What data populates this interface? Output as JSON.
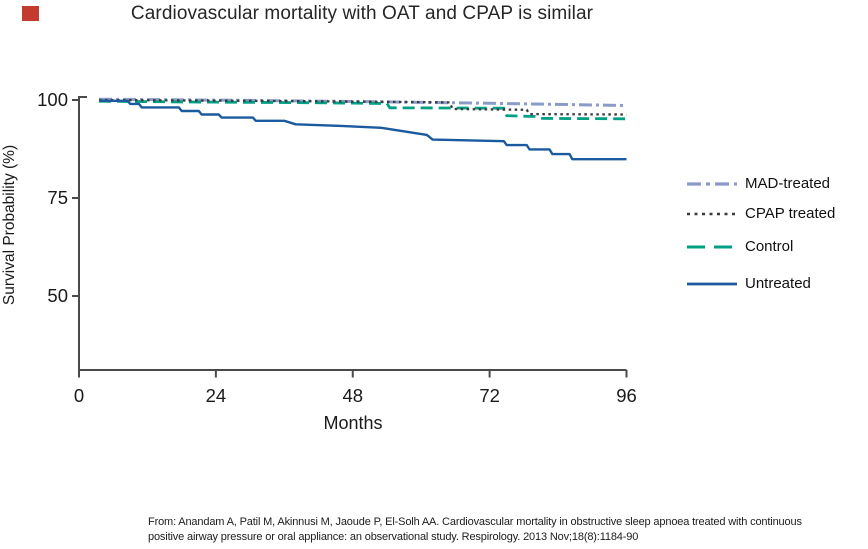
{
  "slide": {
    "title": "Cardiovascular mortality with OAT and CPAP is similar",
    "accent_color": "#c23b2e"
  },
  "chart_data": {
    "type": "line",
    "subtype": "kaplan-meier-step",
    "title": "Cardiovascular mortality with OAT and CPAP is similar",
    "xlabel": "Months",
    "ylabel": "Survival Probability (%)",
    "xlim": [
      0,
      96
    ],
    "x_ticks": [
      0,
      24,
      48,
      72,
      96
    ],
    "y_ticks": [
      100,
      75,
      50
    ],
    "y_range_shown": [
      31,
      101
    ],
    "grid": "off",
    "legend_position": "right",
    "axis_color": "#4a4a4a",
    "series": [
      {
        "name": "MAD-treated",
        "color": "#8a9bc9",
        "dash": "dashdot",
        "points": [
          [
            3.5,
            100.2
          ],
          [
            30,
            99.9
          ],
          [
            50,
            99.6
          ],
          [
            70,
            99.2
          ],
          [
            96,
            98.6
          ]
        ]
      },
      {
        "name": "CPAP treated",
        "color": "#3b3b3b",
        "dash": "dotted",
        "points": [
          [
            3.5,
            100.0
          ],
          [
            30,
            99.8
          ],
          [
            49,
            99.6
          ],
          [
            65,
            99.4
          ],
          [
            65.5,
            97.7
          ],
          [
            78.5,
            97.5
          ],
          [
            79,
            96.4
          ],
          [
            96,
            96.3
          ]
        ]
      },
      {
        "name": "Control",
        "color": "#00a085",
        "dash": "dashed",
        "points": [
          [
            3.5,
            99.7
          ],
          [
            20,
            99.5
          ],
          [
            40,
            99.3
          ],
          [
            54,
            99.1
          ],
          [
            54.5,
            98.0
          ],
          [
            74.5,
            97.9
          ],
          [
            75,
            96.0
          ],
          [
            80,
            95.8
          ],
          [
            81,
            95.3
          ],
          [
            96,
            95.2
          ]
        ]
      },
      {
        "name": "Untreated",
        "color": "#1b5a9e",
        "dash": "solid",
        "points": [
          [
            3.5,
            99.8
          ],
          [
            8.5,
            99.8
          ],
          [
            9,
            99.0
          ],
          [
            10.5,
            99.0
          ],
          [
            11,
            98.1
          ],
          [
            17.5,
            98.1
          ],
          [
            18,
            97.2
          ],
          [
            21,
            97.2
          ],
          [
            21.5,
            96.3
          ],
          [
            24.5,
            96.3
          ],
          [
            25,
            95.5
          ],
          [
            30.5,
            95.5
          ],
          [
            31,
            94.7
          ],
          [
            36,
            94.7
          ],
          [
            38,
            93.8
          ],
          [
            46,
            93.4
          ],
          [
            53,
            92.9
          ],
          [
            61,
            91.1
          ],
          [
            62,
            89.9
          ],
          [
            74.5,
            89.5
          ],
          [
            75,
            88.5
          ],
          [
            78.5,
            88.5
          ],
          [
            79,
            87.4
          ],
          [
            82.5,
            87.4
          ],
          [
            83,
            86.2
          ],
          [
            86,
            86.2
          ],
          [
            86.5,
            84.9
          ],
          [
            96,
            84.9
          ]
        ]
      }
    ]
  },
  "citation": {
    "line1": "From: Anandam A, Patil M, Akinnusi M, Jaoude P, El-Solh AA. Cardiovascular mortality in obstructive sleep apnoea treated with continuous",
    "line2": "positive airway pressure or oral appliance: an observational study. Respirology. 2013 Nov;18(8):1184-90"
  }
}
